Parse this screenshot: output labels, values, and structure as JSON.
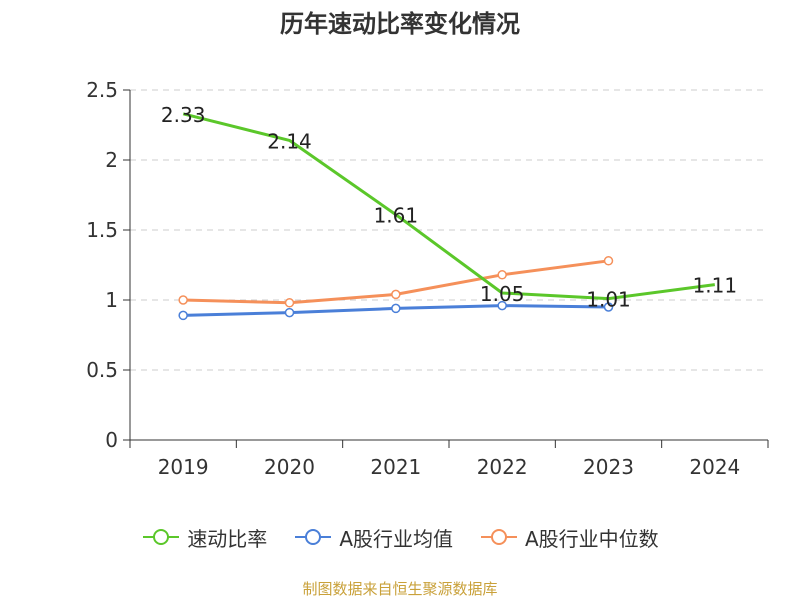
{
  "chart_data": {
    "type": "line",
    "title": "历年速动比率变化情况",
    "categories": [
      "2019",
      "2020",
      "2021",
      "2022",
      "2023",
      "2024"
    ],
    "ylim": [
      0,
      2.5
    ],
    "yticks": [
      "0",
      "0.5",
      "1",
      "1.5",
      "2",
      "2.5"
    ],
    "grid": true,
    "legend_position": "bottom",
    "series": [
      {
        "name": "速动比率",
        "color": "#5bc72a",
        "values": [
          2.33,
          2.14,
          1.61,
          1.05,
          1.01,
          1.11
        ],
        "labels": [
          "2.33",
          "2.14",
          "1.61",
          "1.05",
          "1.01",
          "1.11"
        ],
        "show_markers": false
      },
      {
        "name": "A股行业均值",
        "color": "#4a7fd8",
        "values": [
          0.89,
          0.91,
          0.94,
          0.96,
          0.95,
          null
        ],
        "show_markers": true
      },
      {
        "name": "A股行业中位数",
        "color": "#f5905a",
        "values": [
          1.0,
          0.98,
          1.04,
          1.18,
          1.28,
          null
        ],
        "show_markers": true
      }
    ]
  },
  "source_text": "制图数据来自恒生聚源数据库"
}
